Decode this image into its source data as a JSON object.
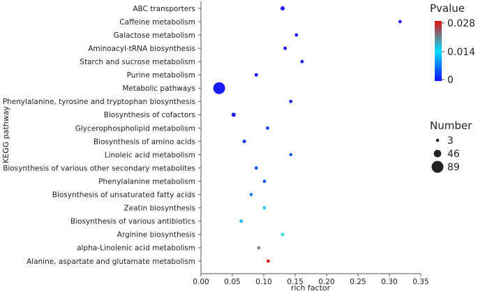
{
  "chart_data": {
    "type": "scatter",
    "xlabel": "rich factor",
    "ylabel": "KEGG pathway",
    "xlim": [
      0,
      0.35
    ],
    "x_ticks": [
      "0.00",
      "0.05",
      "0.10",
      "0.15",
      "0.20",
      "0.25",
      "0.30",
      "0.35"
    ],
    "x_tick_values": [
      0,
      0.05,
      0.1,
      0.15,
      0.2,
      0.25,
      0.3,
      0.35
    ],
    "grid": false,
    "legend_position": "right",
    "color_legend": {
      "title": "Pvalue",
      "min": 0,
      "max": 0.028,
      "ticks": [
        "0.028",
        "0.014",
        "0"
      ],
      "colors": [
        "#1010ff",
        "#00e0ff",
        "#e01010"
      ]
    },
    "size_legend": {
      "title": "Number",
      "entries": [
        {
          "label": "3",
          "value": 3
        },
        {
          "label": "46",
          "value": 46
        },
        {
          "label": "89",
          "value": 89
        }
      ]
    },
    "points": [
      {
        "pathway": "ABC transporters",
        "x": 0.13,
        "number": 14,
        "color": "#1a1aff"
      },
      {
        "pathway": "Caffeine metabolism",
        "x": 0.317,
        "number": 5,
        "color": "#1a1aff"
      },
      {
        "pathway": "Galactose metabolism",
        "x": 0.152,
        "number": 6,
        "color": "#1a1aff"
      },
      {
        "pathway": "Aminoacyl-tRNA biosynthesis",
        "x": 0.134,
        "number": 6,
        "color": "#1a1aff"
      },
      {
        "pathway": "Starch and sucrose metabolism",
        "x": 0.161,
        "number": 6,
        "color": "#1a1aff"
      },
      {
        "pathway": "Purine metabolism",
        "x": 0.088,
        "number": 7,
        "color": "#1a1aff"
      },
      {
        "pathway": "Metabolic pathways",
        "x": 0.029,
        "number": 89,
        "color": "#1a1aff"
      },
      {
        "pathway": "Phenylalanine, tyrosine and tryptophan biosynthesis",
        "x": 0.143,
        "number": 5,
        "color": "#1a1aff"
      },
      {
        "pathway": "Biosynthesis of cofactors",
        "x": 0.052,
        "number": 14,
        "color": "#1a1aff"
      },
      {
        "pathway": "Glycerophospholipid metabolism",
        "x": 0.106,
        "number": 6,
        "color": "#1a3cff"
      },
      {
        "pathway": "Biosynthesis of amino acids",
        "x": 0.069,
        "number": 8,
        "color": "#1a3cff"
      },
      {
        "pathway": "Linoleic acid metabolism",
        "x": 0.143,
        "number": 4,
        "color": "#1a50ff"
      },
      {
        "pathway": "Biosynthesis of various other secondary metabolites",
        "x": 0.088,
        "number": 6,
        "color": "#1a50ff"
      },
      {
        "pathway": "Phenylalanine metabolism",
        "x": 0.101,
        "number": 6,
        "color": "#1a5cff"
      },
      {
        "pathway": "Biosynthesis of unsaturated fatty acids",
        "x": 0.08,
        "number": 5,
        "color": "#1a7cff"
      },
      {
        "pathway": "Zeatin biosynthesis",
        "x": 0.101,
        "number": 5,
        "color": "#10d0ff"
      },
      {
        "pathway": "Biosynthesis of various antibiotics",
        "x": 0.064,
        "number": 6,
        "color": "#10c0ff"
      },
      {
        "pathway": "Arginine biosynthesis",
        "x": 0.13,
        "number": 5,
        "color": "#30d8e0"
      },
      {
        "pathway": "alpha-Linolenic acid metabolism",
        "x": 0.092,
        "number": 6,
        "color": "#888888"
      },
      {
        "pathway": "Alanine, aspartate and glutamate metabolism",
        "x": 0.107,
        "number": 5,
        "color": "#e01010"
      }
    ]
  }
}
